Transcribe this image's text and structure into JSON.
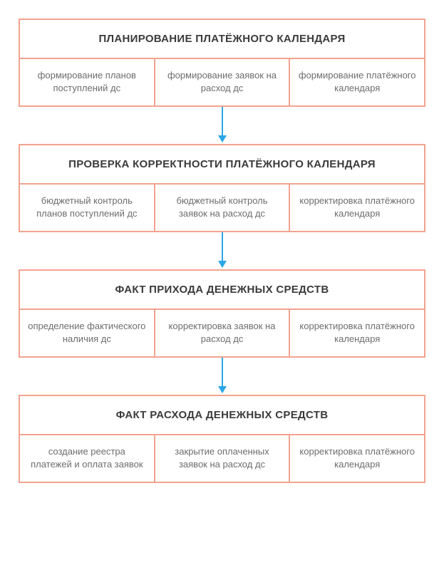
{
  "type": "flowchart",
  "background_color": "#ffffff",
  "border_color": "#f2a390",
  "border_width": 2,
  "title_color": "#3b3b3b",
  "cell_text_color": "#6d6d6d",
  "title_fontsize": 15,
  "cell_fontsize": 13,
  "arrow_color": "#2aa7e6",
  "arrow_width": 2,
  "blocks": [
    {
      "title": "ПЛАНИРОВАНИЕ ПЛАТЁЖНОГО КАЛЕНДАРЯ",
      "cells": [
        "формирование планов поступлений дс",
        "формирование заявок на расход дс",
        "формирование платёжного календаря"
      ]
    },
    {
      "title": "ПРОВЕРКА КОРРЕКТНОСТИ ПЛАТЁЖНОГО КАЛЕНДАРЯ",
      "cells": [
        "бюджетный контроль планов поступлений дс",
        "бюджетный контроль заявок на расход дс",
        "корректировка платёжного календаря"
      ]
    },
    {
      "title": "ФАКТ ПРИХОДА ДЕНЕЖНЫХ СРЕДСТВ",
      "cells": [
        "определение фактического наличия дс",
        "корректировка заявок на расход дс",
        "корректировка платёжного календаря"
      ]
    },
    {
      "title": "ФАКТ РАСХОДА ДЕНЕЖНЫХ СРЕДСТВ",
      "cells": [
        "создание реестра платежей и оплата заявок",
        "закрытие оплаченных заявок на расход дс",
        "корректировка платёжного календаря"
      ]
    }
  ]
}
